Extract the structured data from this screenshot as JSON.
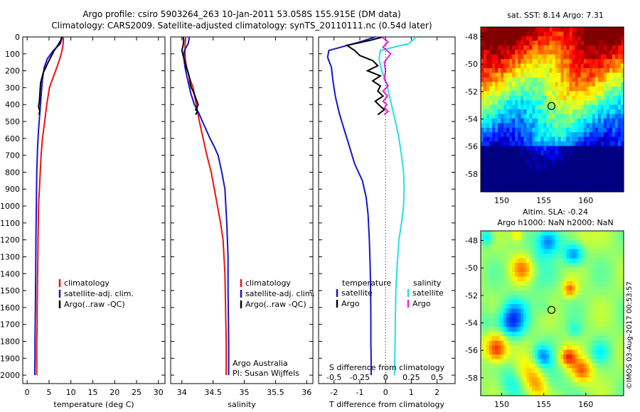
{
  "header": {
    "line1": "Argo profile: csiro 5903264_263 10-Jan-2011 53.058S 155.915E (DM data)",
    "line2": "Climatology: CARS2009. Satellite-adjusted climatology: synTS_20110111.nc (0.54d later)"
  },
  "colors": {
    "climatology": "#ee1111",
    "satellite": "#1515cc",
    "argo": "#000000",
    "argo_salinity_diff": "#ee22dd",
    "satellite_salinity_diff": "#22e0e8"
  },
  "chart_data": [
    {
      "type": "line",
      "panel": "temperature",
      "xlabel": "temperature (deg C)",
      "xticks": [
        0,
        5,
        10,
        15,
        20,
        25,
        30
      ],
      "xlim": [
        -1,
        31.5
      ],
      "ylim": [
        0,
        2050
      ],
      "yticks": [
        0,
        100,
        200,
        300,
        400,
        500,
        600,
        700,
        800,
        900,
        1000,
        1100,
        1200,
        1300,
        1400,
        1500,
        1600,
        1700,
        1800,
        1900,
        2000
      ],
      "legend": [
        "climatology",
        "satellite-adj. clim.",
        "Argo(..raw -QC)"
      ],
      "series": [
        {
          "name": "climatology",
          "x": [
            8.3,
            8.2,
            7.8,
            7.2,
            6.5,
            5.8,
            5.1,
            4.5,
            4.0,
            3.5,
            3.2,
            3.0,
            2.8,
            2.6,
            2.5,
            2.4,
            2.3,
            2.3,
            2.2,
            2.2,
            2.2
          ],
          "y": [
            0,
            50,
            100,
            150,
            200,
            250,
            300,
            400,
            500,
            600,
            700,
            800,
            900,
            1000,
            1200,
            1400,
            1600,
            1700,
            1800,
            1900,
            2000
          ]
        },
        {
          "name": "satellite-adj. clim.",
          "x": [
            8.0,
            7.6,
            6.0,
            4.6,
            3.9,
            3.5,
            3.2,
            2.9,
            2.6,
            2.4,
            2.2,
            2.1,
            2.0,
            1.95,
            1.9,
            1.85,
            1.8,
            1.8,
            1.75
          ],
          "y": [
            0,
            40,
            80,
            130,
            180,
            250,
            350,
            450,
            550,
            650,
            800,
            1000,
            1200,
            1400,
            1600,
            1700,
            1800,
            1900,
            2000
          ]
        },
        {
          "name": "Argo(..raw -QC)",
          "x": [
            7.9,
            7.7,
            7.0,
            6.2,
            5.6,
            5.0,
            4.6,
            4.1,
            3.7,
            3.4,
            3.1,
            3.0,
            2.9,
            2.8,
            2.6,
            2.9,
            2.7
          ],
          "y": [
            0,
            20,
            50,
            80,
            110,
            140,
            160,
            190,
            210,
            240,
            270,
            300,
            340,
            380,
            410,
            440,
            460
          ]
        }
      ]
    },
    {
      "type": "line",
      "panel": "salinity",
      "xlabel": "salinity",
      "xticks": [
        34,
        34.5,
        35,
        35.5,
        36
      ],
      "xlim": [
        33.82,
        36.1
      ],
      "ylim": [
        0,
        2050
      ],
      "legend": [
        "climatology",
        "satellite-adj. clim.",
        "Argo(..raw -QC)"
      ],
      "annotation": [
        "Argo Australia",
        "PI: Susan Wijffels"
      ],
      "series": [
        {
          "name": "climatology",
          "x": [
            34.06,
            34.05,
            34.05,
            34.06,
            34.09,
            34.13,
            34.18,
            34.23,
            34.28,
            34.34,
            34.4,
            34.47,
            34.52,
            34.57,
            34.62,
            34.66,
            34.69,
            34.7,
            34.71,
            34.71,
            34.71
          ],
          "y": [
            0,
            50,
            100,
            150,
            200,
            250,
            300,
            400,
            500,
            600,
            700,
            800,
            900,
            1000,
            1100,
            1200,
            1400,
            1600,
            1800,
            1900,
            2000
          ]
        },
        {
          "name": "satellite-adj. clim.",
          "x": [
            34.12,
            34.1,
            34.04,
            34.03,
            34.05,
            34.09,
            34.14,
            34.2,
            34.27,
            34.33,
            34.39,
            34.45,
            34.52,
            34.58,
            34.64,
            34.69,
            34.72,
            34.74,
            34.74,
            34.75,
            34.75
          ],
          "y": [
            0,
            40,
            80,
            120,
            180,
            250,
            330,
            400,
            450,
            500,
            550,
            600,
            650,
            700,
            800,
            900,
            1100,
            1300,
            1500,
            1800,
            2000
          ]
        },
        {
          "name": "Argo(..raw -QC)",
          "x": [
            34.02,
            34.03,
            34.02,
            34.0,
            34.02,
            34.05,
            34.07,
            34.1,
            34.12,
            34.13,
            34.15,
            34.18,
            34.2,
            34.23,
            34.26,
            34.24,
            34.22,
            34.25,
            34.22
          ],
          "y": [
            0,
            20,
            50,
            80,
            110,
            150,
            180,
            210,
            240,
            270,
            300,
            320,
            340,
            370,
            400,
            420,
            430,
            440,
            460
          ]
        }
      ]
    },
    {
      "type": "line",
      "panel": "difference",
      "xlabel": "T difference from climatology",
      "xlabel_top": "S difference from climatology",
      "xticks": [
        -2,
        -1,
        0,
        1,
        2
      ],
      "s_ticks": [
        -0.5,
        -0.25,
        0,
        0.25,
        0.5
      ],
      "xlim": [
        -2.6,
        2.7
      ],
      "ylim": [
        0,
        2050
      ],
      "legend": {
        "temperature_header": "temperature",
        "salinity_header": "salinity",
        "entries": [
          "satellite",
          "Argo",
          "satellite",
          "Argo"
        ]
      },
      "series": [
        {
          "name": "temperature satellite",
          "x": [
            -0.4,
            -1.0,
            -2.2,
            -2.25,
            -2.1,
            -2.05,
            -1.95,
            -1.8,
            -1.6,
            -1.4,
            -1.2,
            -0.9,
            -0.75,
            -0.68,
            -0.63,
            -0.6,
            -0.58,
            -0.57,
            -0.57,
            -0.56,
            -0.56
          ],
          "y": [
            0,
            30,
            80,
            120,
            180,
            250,
            350,
            450,
            550,
            650,
            750,
            850,
            950,
            1050,
            1200,
            1350,
            1500,
            1650,
            1800,
            1900,
            2000
          ]
        },
        {
          "name": "temperature Argo",
          "x": [
            -0.1,
            -0.6,
            -1.5,
            -1.2,
            -1.0,
            -0.5,
            -0.3,
            -0.7,
            -0.2,
            -0.5,
            -0.2,
            -0.3,
            -0.1,
            -0.4,
            -0.2,
            -0.05,
            -0.3
          ],
          "y": [
            0,
            20,
            50,
            80,
            110,
            140,
            170,
            200,
            230,
            260,
            290,
            320,
            350,
            380,
            410,
            430,
            460
          ]
        },
        {
          "name": "salinity satellite",
          "x": [
            1.2,
            0.9,
            -0.2,
            -0.25,
            -0.15,
            0.05,
            0.2,
            0.35,
            0.5,
            0.62,
            0.7,
            0.72,
            0.7,
            0.62,
            0.52,
            0.45,
            0.4,
            0.38,
            0.37,
            0.36,
            0.35
          ],
          "y": [
            0,
            40,
            80,
            130,
            200,
            280,
            380,
            480,
            580,
            700,
            800,
            900,
            1000,
            1100,
            1200,
            1350,
            1500,
            1650,
            1800,
            1900,
            2000
          ]
        },
        {
          "name": "salinity Argo",
          "x": [
            -0.15,
            0.1,
            -0.1,
            0.2,
            -0.05,
            0.0,
            -0.05,
            0.1,
            -0.1,
            0.08,
            -0.1,
            0.05,
            -0.05,
            0.1,
            -0.05
          ],
          "y": [
            0,
            30,
            60,
            100,
            150,
            200,
            250,
            290,
            320,
            350,
            380,
            400,
            420,
            440,
            460
          ]
        }
      ]
    },
    {
      "type": "heatmap",
      "panel": "sst_map",
      "title": "sat. SST: 8.14 Argo: 7.31",
      "xticks": [
        150,
        155,
        160
      ],
      "yticks": [
        -48,
        -50,
        -52,
        -54,
        -56,
        -58
      ],
      "xlim": [
        147.5,
        164.5
      ],
      "ylim": [
        -59.3,
        -47.3
      ],
      "float_position": [
        155.915,
        -53.058
      ]
    },
    {
      "type": "heatmap",
      "panel": "sla_map",
      "title_line1": "Altim. SLA: -0.24",
      "title_line2": "Argo h1000: NaN h2000: NaN",
      "xticks": [
        150,
        155,
        160
      ],
      "yticks": [
        -48,
        -50,
        -52,
        -54,
        -56,
        -58
      ],
      "xlim": [
        147.5,
        164.5
      ],
      "ylim": [
        -59.3,
        -47.3
      ],
      "float_position": [
        155.915,
        -53.058
      ]
    }
  ],
  "footer": {
    "stamp": "©IMOS 03-Aug-2017 00:53:57"
  }
}
